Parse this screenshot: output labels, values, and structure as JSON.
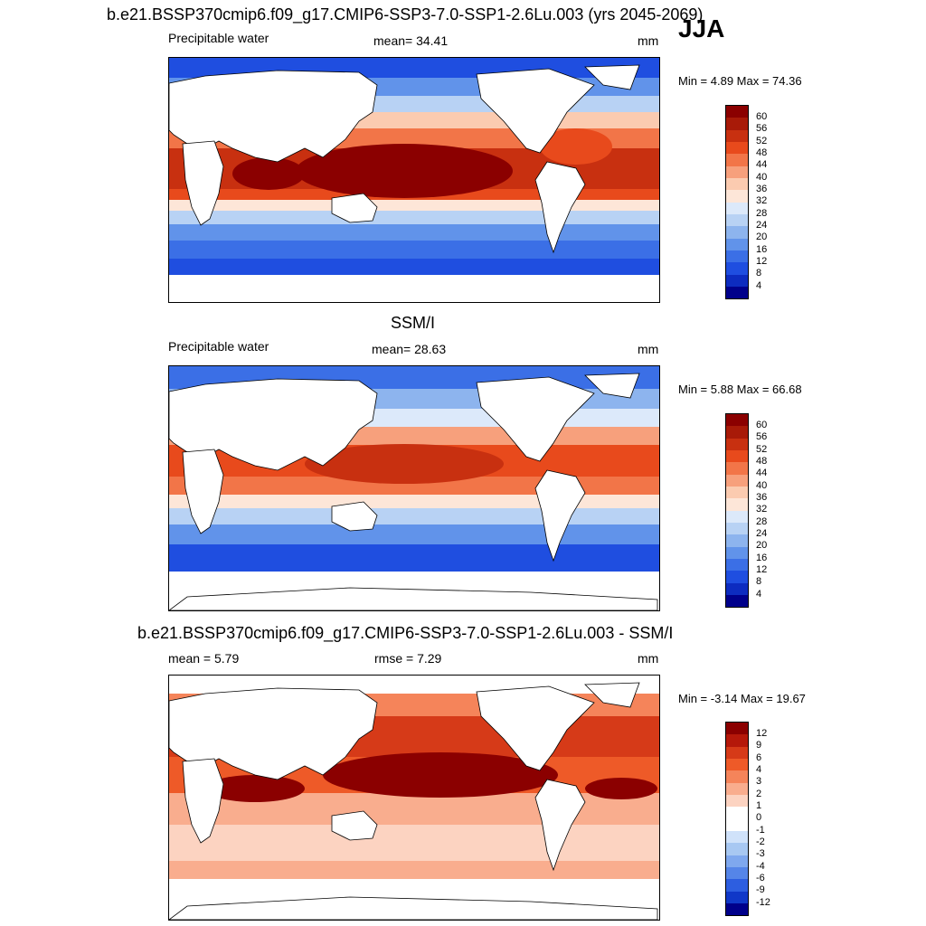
{
  "season": "JJA",
  "panels": [
    {
      "title": "b.e21.BSSP370cmip6.f09_g17.CMIP6-SSP3-7.0-SSP1-2.6Lu.003 (yrs 2045-2069)",
      "left_label": "Precipitable water",
      "center_label": "mean=  34.41",
      "units": "mm",
      "minmax": "Min =   4.89 Max =  74.36",
      "colorbar_levels": [
        "60",
        "56",
        "52",
        "48",
        "44",
        "40",
        "36",
        "32",
        "28",
        "24",
        "20",
        "16",
        "12",
        "8",
        "4"
      ]
    },
    {
      "title": "SSM/I",
      "left_label": "Precipitable water",
      "center_label": "mean=  28.63",
      "units": "mm",
      "minmax": "Min =   5.88 Max =  66.68",
      "colorbar_levels": [
        "60",
        "56",
        "52",
        "48",
        "44",
        "40",
        "36",
        "32",
        "28",
        "24",
        "20",
        "16",
        "12",
        "8",
        "4"
      ]
    },
    {
      "title": "b.e21.BSSP370cmip6.f09_g17.CMIP6-SSP3-7.0-SSP1-2.6Lu.003 - SSM/I",
      "left_label": "mean =   5.79",
      "center_label": "rmse =   7.29",
      "units": "mm",
      "minmax": "Min =  -3.14 Max =  19.67",
      "colorbar_levels": [
        "12",
        "9",
        "6",
        "4",
        "3",
        "2",
        "1",
        "0",
        "-1",
        "-2",
        "-3",
        "-4",
        "-6",
        "-9",
        "-12"
      ]
    }
  ],
  "colors": {
    "absolute_scale": [
      "#8b0000",
      "#a81a08",
      "#c83010",
      "#e84a1c",
      "#f27548",
      "#f7a07c",
      "#fbcbb0",
      "#fde6d8",
      "#dce9fa",
      "#b8d2f4",
      "#8db4ee",
      "#6193ea",
      "#3b6fe6",
      "#1f4ee0",
      "#0d2cc0",
      "#00008b"
    ],
    "diff_scale": [
      "#8b0000",
      "#b5180a",
      "#d63a18",
      "#ee5a28",
      "#f5845a",
      "#f9ad8e",
      "#fcd3c1",
      "#ffffff",
      "#ffffff",
      "#d0e2fa",
      "#a8c8f2",
      "#7fa8ee",
      "#5585e8",
      "#2d5ee0",
      "#1038c8",
      "#00008b"
    ],
    "land": "#ffffff",
    "coast": "#000000"
  }
}
